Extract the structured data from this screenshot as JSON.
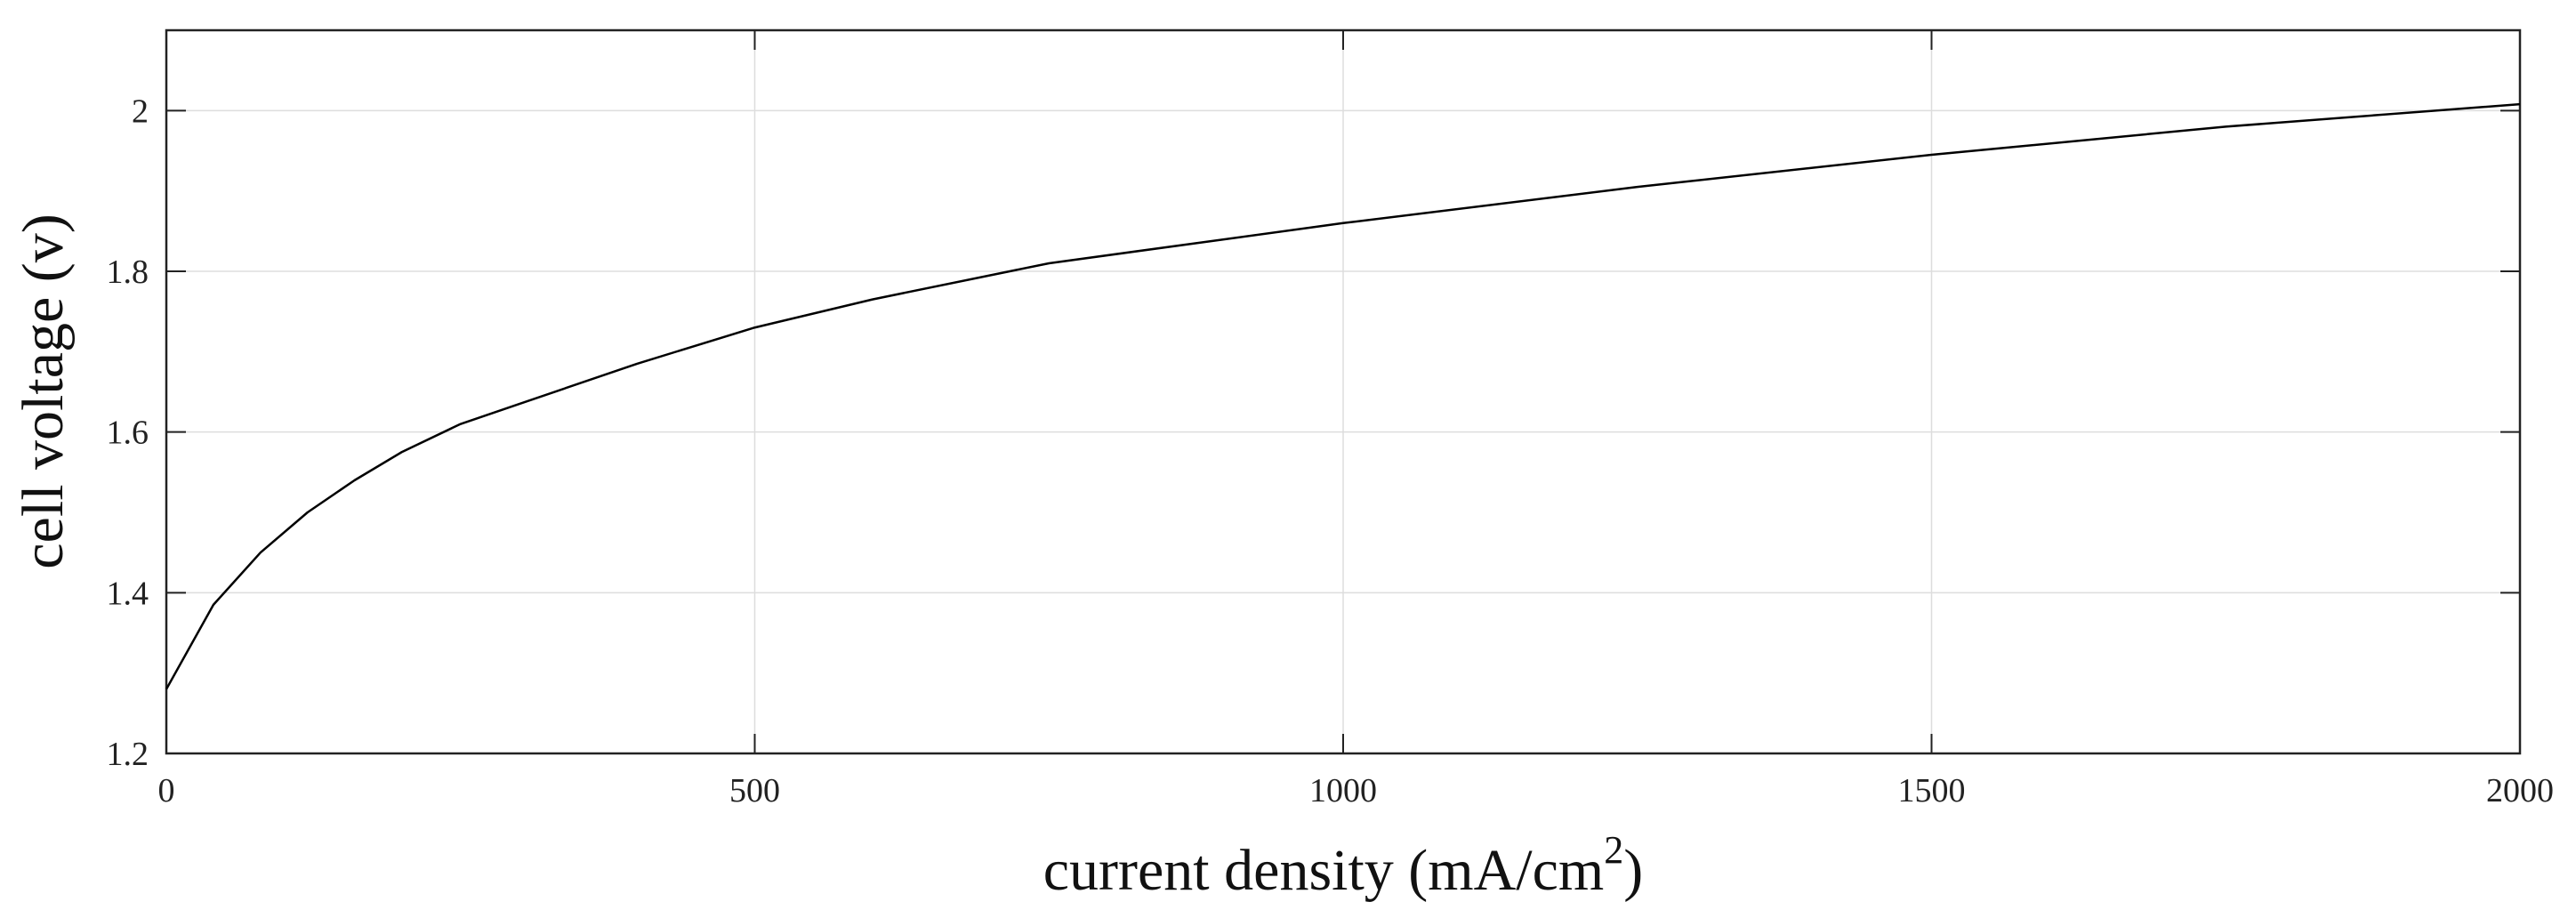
{
  "chart_data": {
    "type": "line",
    "title": "",
    "xlabel": "current density  (mA/cm",
    "xlabel_sup": "2",
    "xlabel_end": ")",
    "ylabel": "cell voltage  (v)",
    "xlim": [
      0,
      2000
    ],
    "ylim": [
      1.2,
      2.1
    ],
    "xticks": [
      0,
      500,
      1000,
      1500,
      2000
    ],
    "xtick_labels": [
      "0",
      "500",
      "1000",
      "1500",
      "2000"
    ],
    "yticks": [
      1.2,
      1.4,
      1.6,
      1.8,
      2.0
    ],
    "ytick_labels": [
      "1.2",
      "1.4",
      "1.6",
      "1.8",
      "2"
    ],
    "grid": true,
    "series": [
      {
        "color": "#000000",
        "x": [
          0,
          40,
          80,
          120,
          160,
          200,
          250,
          300,
          400,
          500,
          600,
          750,
          1000,
          1250,
          1500,
          1750,
          2000
        ],
        "y": [
          1.28,
          1.385,
          1.45,
          1.5,
          1.54,
          1.575,
          1.61,
          1.635,
          1.685,
          1.73,
          1.765,
          1.81,
          1.86,
          1.905,
          1.945,
          1.98,
          2.008
        ]
      }
    ]
  }
}
